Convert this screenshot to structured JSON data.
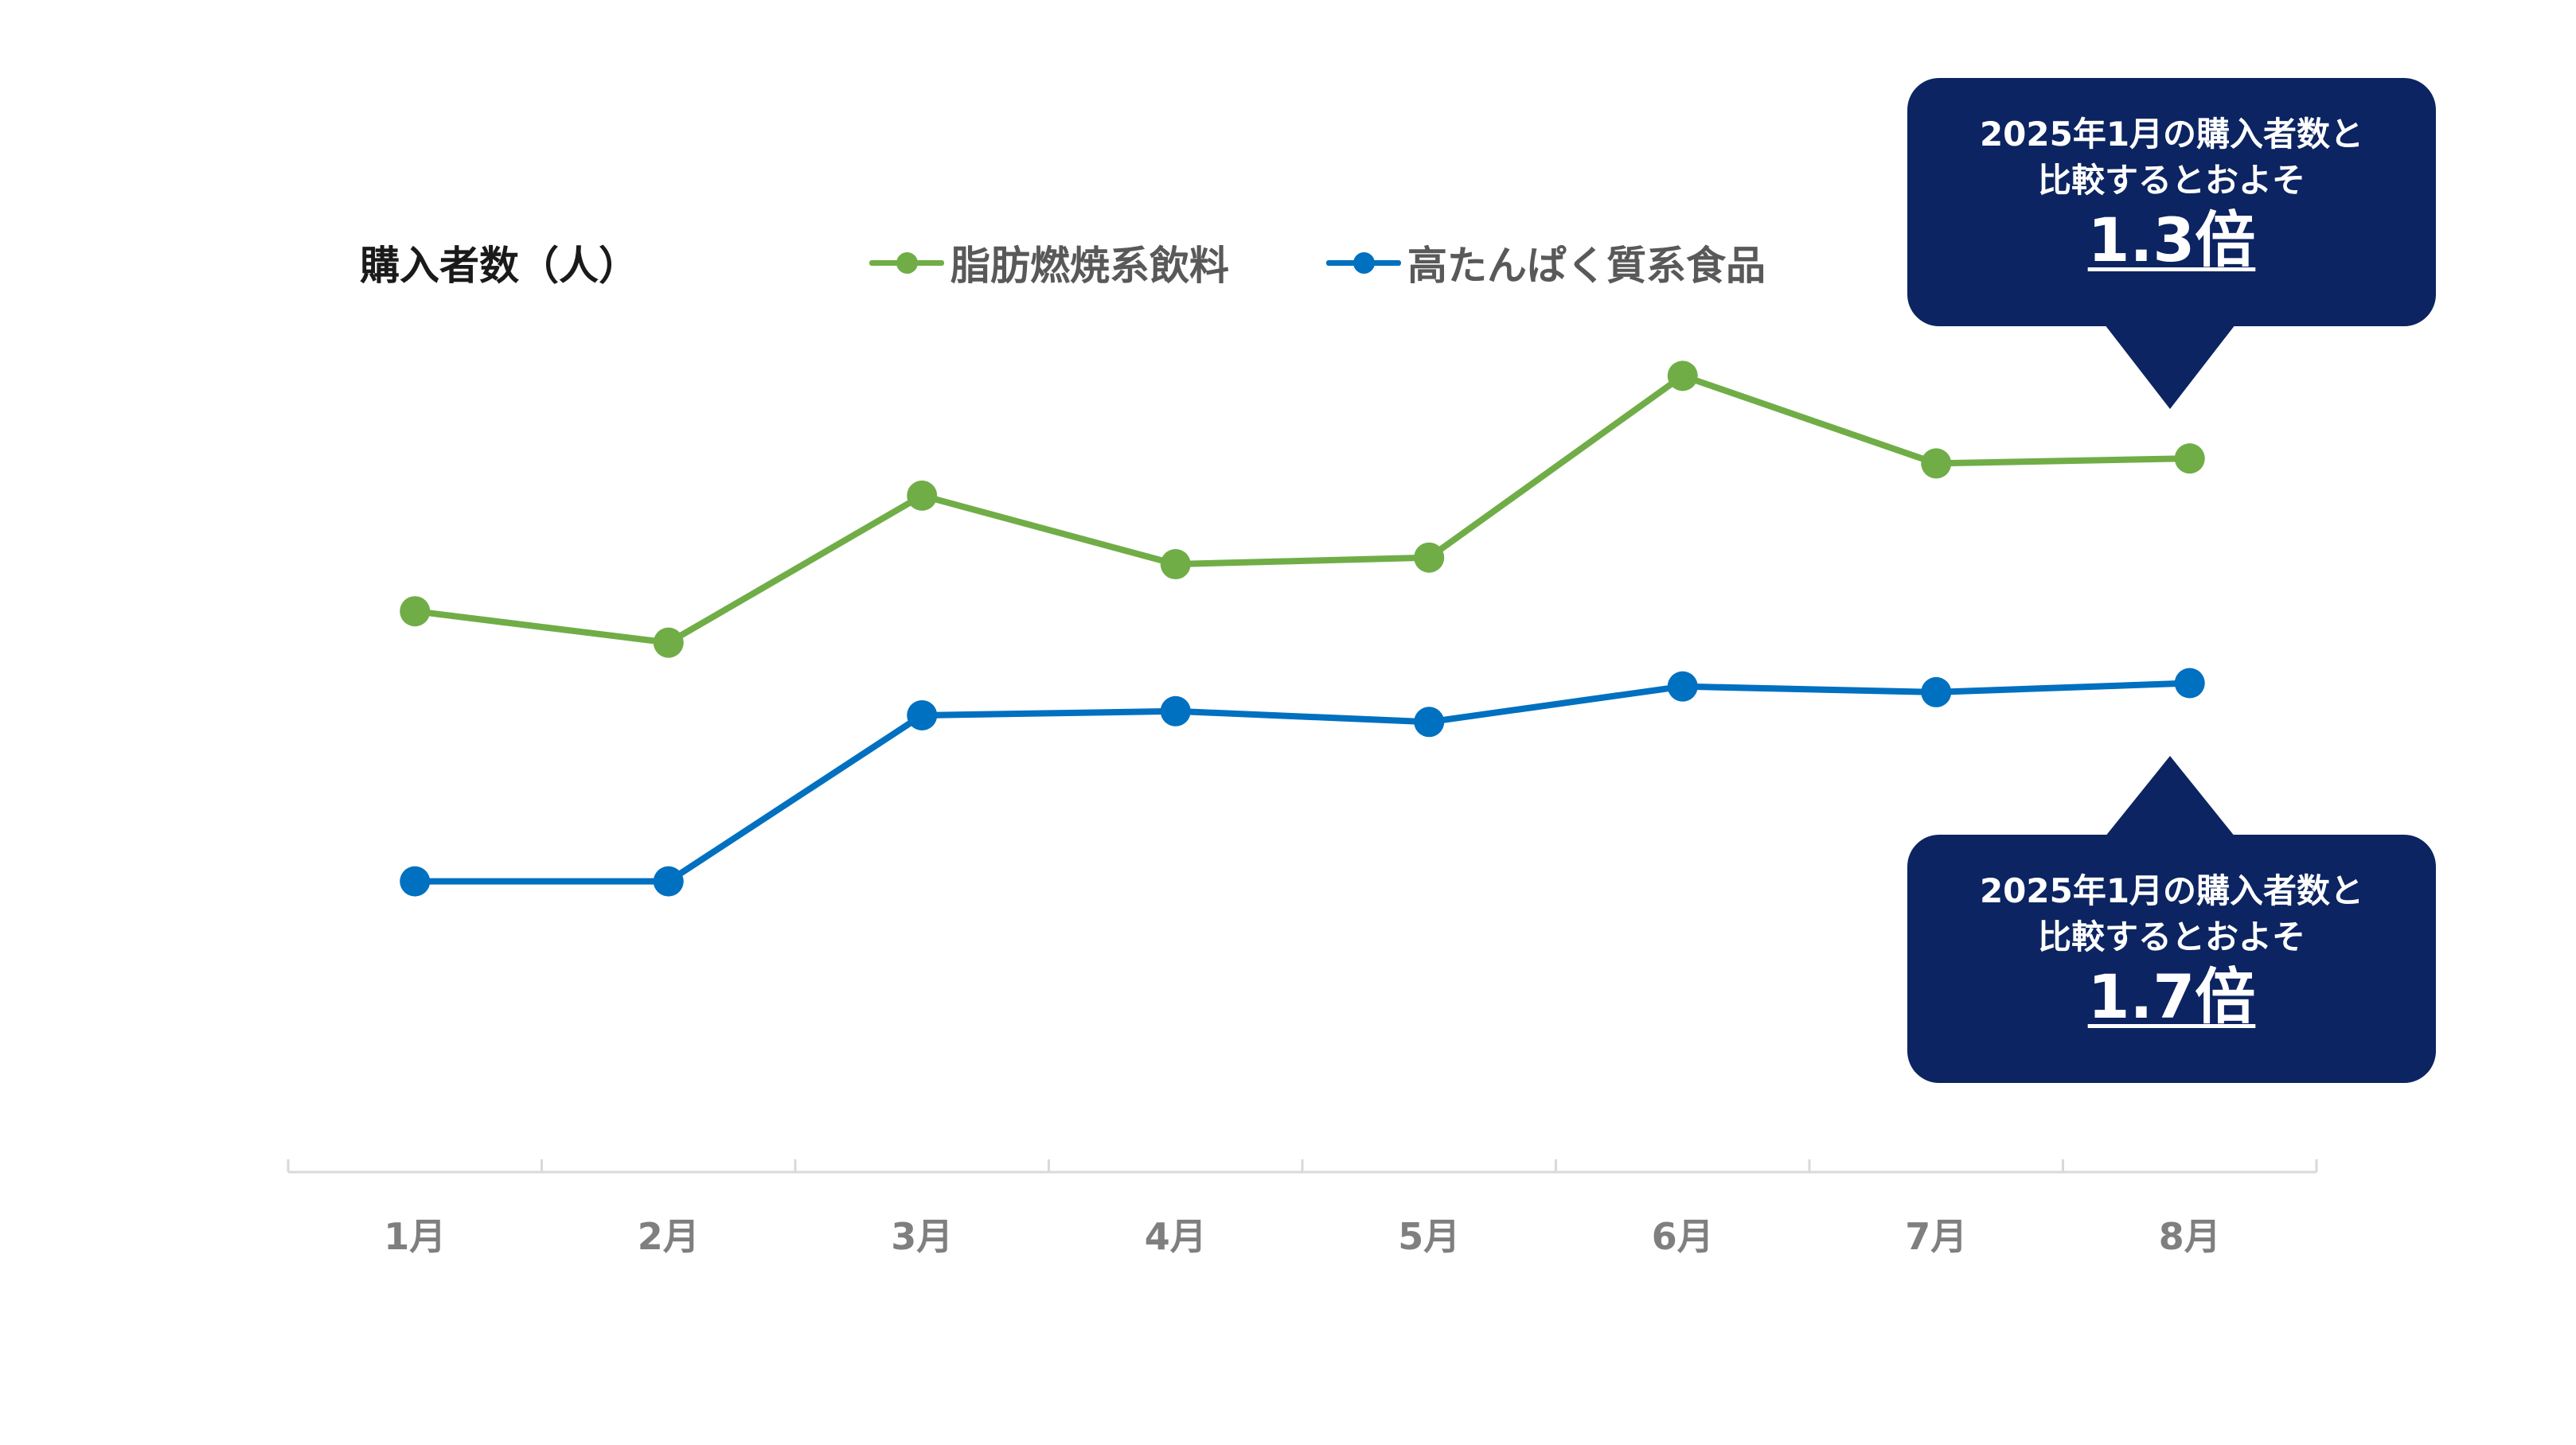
{
  "colors": {
    "series_green": "#70ad47",
    "series_blue": "#0070c0",
    "callout_bg": "#0c2461",
    "axis": "#d9d9d9",
    "tick_text": "#7f7f7f"
  },
  "chart_data": {
    "type": "line",
    "title": "",
    "ylabel": "購入者数（人）",
    "xlabel": "",
    "categories": [
      "1月",
      "2月",
      "3月",
      "4月",
      "5月",
      "6月",
      "7月",
      "8月"
    ],
    "y_axis_visible": false,
    "grid": false,
    "legend_position": "top",
    "ylim": [
      0,
      100
    ],
    "series": [
      {
        "name": "脂肪燃焼系飲料",
        "color": "#70ad47",
        "values": [
          67.9,
          64.1,
          81.9,
          73.6,
          74.4,
          96.4,
          85.8,
          86.4
        ]
      },
      {
        "name": "高たんぱく質系食品",
        "color": "#0070c0",
        "values": [
          35.2,
          35.2,
          55.3,
          55.8,
          54.5,
          58.8,
          58.1,
          59.2
        ]
      }
    ],
    "annotations": [
      {
        "series": "脂肪燃焼系飲料",
        "category": "8月",
        "line1": "2025年1月の購入者数と",
        "line2": "比較するとおよそ",
        "value": "1.3倍"
      },
      {
        "series": "高たんぱく質系食品",
        "category": "8月",
        "line1": "2025年1月の購入者数と",
        "line2": "比較するとおよそ",
        "value": "1.7倍"
      }
    ]
  }
}
